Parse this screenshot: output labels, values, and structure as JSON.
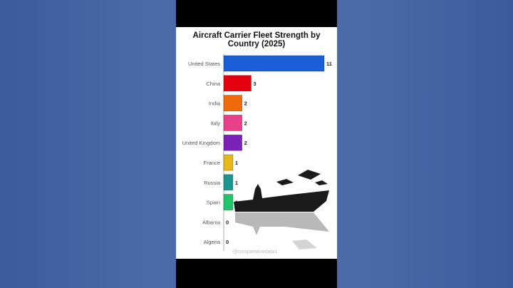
{
  "chart_data": {
    "type": "bar",
    "orientation": "horizontal",
    "title": "Aircraft Carrier Fleet Strength by Country (2025)",
    "categories": [
      "United States",
      "China",
      "India",
      "Italy",
      "United Kingdom",
      "France",
      "Russia",
      "Spain",
      "Albania",
      "Algeria"
    ],
    "values": [
      11,
      3,
      2,
      2,
      2,
      1,
      1,
      1,
      0,
      0
    ],
    "colors": [
      "#1a5fd8",
      "#e3000f",
      "#ee6a0a",
      "#e8408a",
      "#7b22b8",
      "#e8b81a",
      "#1a9690",
      "#21c46a",
      "#cccccc",
      "#cccccc"
    ],
    "xlim": [
      0,
      11
    ],
    "grid": false,
    "watermark": "@comparativedata1"
  }
}
